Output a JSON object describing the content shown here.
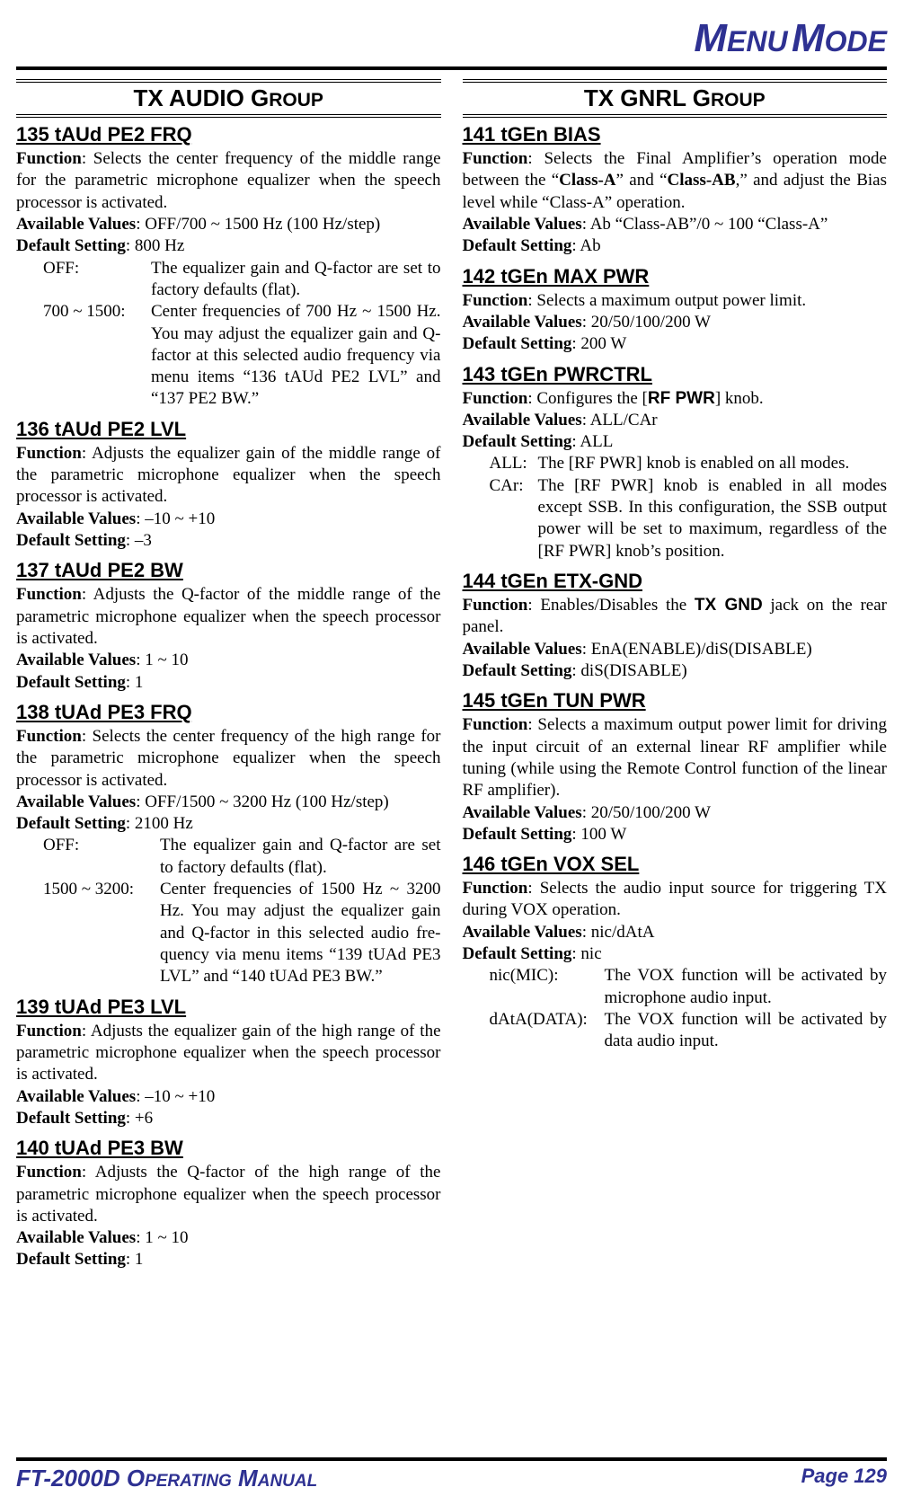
{
  "header": {
    "big1": "M",
    "rest1": "ENU",
    "big2": "M",
    "rest2": "ODE"
  },
  "left": {
    "group": {
      "caps": "TX AUDIO G",
      "sc": "ROUP"
    },
    "items": [
      {
        "title": "135 tAUd PE2 FRQ",
        "lines": [
          [
            {
              "b": true,
              "t": "Function"
            },
            {
              "t": ": Selects the center frequency of the middle range for the parametric microphone equalizer when the speech processor is activated."
            }
          ],
          [
            {
              "b": true,
              "t": "Available Values"
            },
            {
              "t": ": OFF/700 ~ 1500 Hz (100 Hz/step)"
            }
          ],
          [
            {
              "b": true,
              "t": "Default Setting"
            },
            {
              "t": ": 800 Hz"
            }
          ]
        ],
        "defs": {
          "termWidth": "120px",
          "rows": [
            {
              "term": "OFF:",
              "desc": "The equalizer gain and Q-factor are set to factory defaults (flat)."
            },
            {
              "term": "700 ~ 1500:",
              "desc": "Center frequencies of 700 Hz ~ 1500 Hz. You may adjust the equalizer gain and Q-factor at this selected audio frequency via menu items “136 tAUd PE2 LVL” and “137 PE2 BW.”"
            }
          ]
        }
      },
      {
        "title": "136 tAUd PE2 LVL",
        "lines": [
          [
            {
              "b": true,
              "t": "Function"
            },
            {
              "t": ": Adjusts the equalizer gain of the middle range of the parametric microphone equalizer when the speech processor is activated."
            }
          ],
          [
            {
              "b": true,
              "t": "Available Values"
            },
            {
              "t": ": –10 ~ +10"
            }
          ],
          [
            {
              "b": true,
              "t": "Default Setting"
            },
            {
              "t": ": –3"
            }
          ]
        ]
      },
      {
        "title": "137 tAUd PE2 BW",
        "lines": [
          [
            {
              "b": true,
              "t": "Function"
            },
            {
              "t": ": Adjusts the Q-factor of the middle range of the parametric microphone equalizer when the speech proces­sor is activated."
            }
          ],
          [
            {
              "b": true,
              "t": "Available Values"
            },
            {
              "t": ": 1 ~ 10"
            }
          ],
          [
            {
              "b": true,
              "t": "Default Setting"
            },
            {
              "t": ": 1"
            }
          ]
        ]
      },
      {
        "title": "138 tUAd PE3 FRQ",
        "lines": [
          [
            {
              "b": true,
              "t": "Function"
            },
            {
              "t": ": Selects the center frequency of the high range for the parametric microphone equalizer when the speech processor is activated."
            }
          ],
          [
            {
              "b": true,
              "t": "Available Values"
            },
            {
              "t": ": OFF/1500 ~ 3200 Hz (100 Hz/step)"
            }
          ],
          [
            {
              "b": true,
              "t": "Default Setting"
            },
            {
              "t": ": 2100 Hz"
            }
          ]
        ],
        "defs": {
          "termWidth": "130px",
          "rows": [
            {
              "term": "OFF:",
              "desc": "The equalizer gain and Q-factor are set to factory defaults (flat)."
            },
            {
              "term": "1500 ~ 3200:",
              "desc": "Center frequencies of 1500 Hz ~ 3200 Hz. You may adjust the equalizer gain and Q-factor in this selected audio fre­quency via menu items “139 tUAd PE3 LVL” and “140 tUAd PE3 BW.”"
            }
          ]
        }
      },
      {
        "title": "139 tUAd PE3 LVL",
        "lines": [
          [
            {
              "b": true,
              "t": "Function"
            },
            {
              "t": ": Adjusts the equalizer gain of the high range of the parametric microphone equalizer when the speech pro­cessor is activated."
            }
          ],
          [
            {
              "b": true,
              "t": "Available Values"
            },
            {
              "t": ": –10 ~ +10"
            }
          ],
          [
            {
              "b": true,
              "t": "Default Setting"
            },
            {
              "t": ": +6"
            }
          ]
        ]
      },
      {
        "title": "140 tUAd PE3 BW",
        "lines": [
          [
            {
              "b": true,
              "t": "Function"
            },
            {
              "t": ": Adjusts the Q-factor of the high range of the parametric microphone equalizer when the speech proces­sor is activated."
            }
          ],
          [
            {
              "b": true,
              "t": "Available Values"
            },
            {
              "t": ": 1 ~ 10"
            }
          ],
          [
            {
              "b": true,
              "t": "Default Setting"
            },
            {
              "t": ": 1"
            }
          ]
        ]
      }
    ]
  },
  "right": {
    "group": {
      "caps": "TX GNRL G",
      "sc": "ROUP"
    },
    "items": [
      {
        "title": "141 tGEn BIAS",
        "lines": [
          [
            {
              "b": true,
              "t": "Function"
            },
            {
              "t": ": Selects the Final Amplifier’s operation mode between the “"
            },
            {
              "b": true,
              "t": "Class-A"
            },
            {
              "t": "” and “"
            },
            {
              "b": true,
              "t": "Class-AB"
            },
            {
              "t": ",” and adjust the Bias level while “Class-A” operation."
            }
          ],
          [
            {
              "b": true,
              "t": "Available Values"
            },
            {
              "t": ": Ab “Class-AB”/0 ~ 100 “Class-A”"
            }
          ],
          [
            {
              "b": true,
              "t": "Default Setting"
            },
            {
              "t": ": Ab"
            }
          ]
        ]
      },
      {
        "title": "142 tGEn MAX PWR",
        "lines": [
          [
            {
              "b": true,
              "t": "Function"
            },
            {
              "t": ": Selects a maximum output power limit."
            }
          ],
          [
            {
              "b": true,
              "t": "Available Values"
            },
            {
              "t": ": 20/50/100/200 W"
            }
          ],
          [
            {
              "b": true,
              "t": "Default Setting"
            },
            {
              "t": ": 200 W"
            }
          ]
        ]
      },
      {
        "title": "143 tGEn PWRCTRL",
        "lines": [
          [
            {
              "b": true,
              "t": "Function"
            },
            {
              "t": ": Configures the ["
            },
            {
              "sans": true,
              "t": "RF PWR"
            },
            {
              "t": "] knob."
            }
          ],
          [
            {
              "b": true,
              "t": "Available Values"
            },
            {
              "t": ": ALL/CAr"
            }
          ],
          [
            {
              "b": true,
              "t": "Default Setting"
            },
            {
              "t": ": ALL"
            }
          ]
        ],
        "defs": {
          "termWidth": "54px",
          "rows": [
            {
              "term": "ALL:",
              "richdesc": [
                {
                  "t": "The ["
                },
                {
                  "sans": true,
                  "t": "RF PWR"
                },
                {
                  "t": "] knob is enabled on all modes."
                }
              ]
            },
            {
              "term": "CAr:",
              "richdesc": [
                {
                  "t": "The ["
                },
                {
                  "sans": true,
                  "t": "RF PWR"
                },
                {
                  "t": "] knob is enabled in all modes except SSB. In this configuration, the SSB out­put power will be set to maximum, regardless of the ["
                },
                {
                  "sans": true,
                  "t": "RF PWR"
                },
                {
                  "t": "] knob’s position."
                }
              ]
            }
          ]
        }
      },
      {
        "title": "144 tGEn ETX-GND",
        "lines": [
          [
            {
              "b": true,
              "t": "Function"
            },
            {
              "t": ": Enables/Disables the "
            },
            {
              "sans": true,
              "t": "TX GND"
            },
            {
              "t": " jack on the rear panel."
            }
          ],
          [
            {
              "b": true,
              "t": "Available Values"
            },
            {
              "t": ": EnA(ENABLE)/diS(DISABLE)"
            }
          ],
          [
            {
              "b": true,
              "t": "Default Setting"
            },
            {
              "t": ": diS(DISABLE)"
            }
          ]
        ]
      },
      {
        "title": "145 tGEn TUN PWR",
        "lines": [
          [
            {
              "b": true,
              "t": "Function"
            },
            {
              "t": ": Selects a maximum output power limit for driv­ing the input circuit of an external linear RF amplifier while tuning (while using the Remote Control function of the linear RF amplifier)."
            }
          ],
          [
            {
              "b": true,
              "t": "Available Values"
            },
            {
              "t": ": 20/50/100/200 W"
            }
          ],
          [
            {
              "b": true,
              "t": "Default Setting"
            },
            {
              "t": ": 100 W"
            }
          ]
        ]
      },
      {
        "title": "146 tGEn VOX SEL",
        "lines": [
          [
            {
              "b": true,
              "t": "Function"
            },
            {
              "t": ": Selects the audio input source for triggering TX during VOX operation."
            }
          ],
          [
            {
              "b": true,
              "t": "Available Values"
            },
            {
              "t": ": nic/dAtA"
            }
          ],
          [
            {
              "b": true,
              "t": "Default Setting"
            },
            {
              "t": ": nic"
            }
          ]
        ],
        "defs": {
          "termWidth": "128px",
          "rows": [
            {
              "term": "nic(MIC):",
              "desc": "The VOX function will be activated by microphone audio input."
            },
            {
              "term": "dAtA(DATA):",
              "desc": "The VOX function will be activated by data audio input."
            }
          ]
        }
      }
    ]
  },
  "footer": {
    "left": [
      {
        "big": "FT-2000D O"
      },
      {
        "sm": "PERATING"
      },
      {
        "big": " M"
      },
      {
        "sm": "ANUAL"
      }
    ],
    "right": "Page 129"
  }
}
